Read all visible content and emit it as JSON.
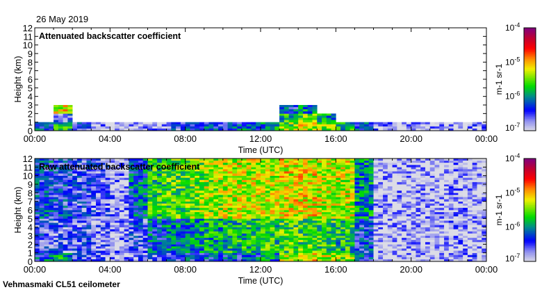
{
  "header": {
    "date": "26 May 2019",
    "station": "Vehmasmaki CL51 ceilometer"
  },
  "chart_data": [
    {
      "type": "heatmap",
      "title": "Attenuated backscatter coefficient",
      "xlabel": "Time (UTC)",
      "ylabel": "Height (km)",
      "xlim": [
        0,
        24
      ],
      "ylim": [
        0,
        12
      ],
      "x_tick_labels": [
        "00:00",
        "04:00",
        "08:00",
        "12:00",
        "16:00",
        "20:00",
        "00:00"
      ],
      "y_tick_labels": [
        "0",
        "1",
        "2",
        "3",
        "4",
        "5",
        "6",
        "7",
        "8",
        "9",
        "10",
        "11",
        "12"
      ],
      "x_hours": [
        0,
        1,
        2,
        3,
        4,
        5,
        6,
        7,
        8,
        9,
        10,
        11,
        12,
        13,
        14,
        15,
        16,
        17,
        18,
        19,
        20,
        21,
        22,
        23
      ],
      "value_units": "log10 backscatter (m-1 sr-1)",
      "rows_km_from_ground": [
        [
          -6.3,
          -5.8,
          -6.5,
          -6.8,
          -6.9,
          -6.9,
          -6.8,
          -6.5,
          -6.3,
          -6.3,
          -6.3,
          -6.2,
          -6.0,
          -5.5,
          -5.3,
          -5.5,
          -5.8,
          -6.2,
          -6.8,
          -6.9,
          -6.9,
          -6.9,
          -6.8,
          -6.7
        ],
        [
          null,
          -6.5,
          null,
          null,
          null,
          null,
          null,
          null,
          null,
          null,
          null,
          null,
          null,
          -5.8,
          -5.5,
          -6.0,
          null,
          null,
          null,
          null,
          null,
          null,
          null,
          null
        ],
        [
          null,
          -5.2,
          null,
          null,
          null,
          null,
          null,
          null,
          null,
          null,
          null,
          null,
          null,
          -6.3,
          -6.0,
          null,
          null,
          null,
          null,
          null,
          null,
          null,
          null,
          null
        ],
        [
          null,
          null,
          null,
          null,
          null,
          null,
          null,
          null,
          null,
          null,
          null,
          null,
          null,
          null,
          null,
          null,
          null,
          null,
          null,
          null,
          null,
          null,
          null,
          null
        ],
        [
          null,
          null,
          null,
          null,
          null,
          null,
          null,
          null,
          null,
          null,
          null,
          null,
          null,
          null,
          null,
          null,
          null,
          null,
          null,
          null,
          null,
          null,
          null,
          null
        ],
        [
          null,
          null,
          null,
          null,
          null,
          null,
          null,
          null,
          null,
          null,
          null,
          null,
          null,
          null,
          null,
          null,
          null,
          null,
          null,
          null,
          null,
          null,
          null,
          null
        ],
        [
          null,
          null,
          null,
          null,
          null,
          null,
          null,
          null,
          null,
          null,
          null,
          null,
          null,
          null,
          null,
          null,
          null,
          null,
          null,
          null,
          null,
          null,
          null,
          null
        ],
        [
          null,
          null,
          null,
          null,
          null,
          null,
          null,
          null,
          null,
          null,
          null,
          null,
          null,
          null,
          null,
          null,
          null,
          null,
          null,
          null,
          null,
          null,
          null,
          null
        ],
        [
          null,
          null,
          null,
          null,
          null,
          null,
          null,
          null,
          null,
          null,
          null,
          null,
          null,
          null,
          null,
          null,
          null,
          null,
          null,
          null,
          null,
          null,
          null,
          null
        ],
        [
          null,
          null,
          null,
          null,
          null,
          null,
          null,
          null,
          null,
          null,
          null,
          null,
          null,
          null,
          null,
          null,
          null,
          null,
          null,
          null,
          null,
          null,
          null,
          null
        ],
        [
          null,
          null,
          null,
          null,
          null,
          null,
          null,
          null,
          null,
          null,
          null,
          null,
          null,
          null,
          null,
          null,
          null,
          null,
          null,
          null,
          null,
          null,
          null,
          null
        ],
        [
          null,
          null,
          null,
          null,
          null,
          null,
          null,
          null,
          null,
          null,
          null,
          null,
          null,
          null,
          null,
          null,
          null,
          null,
          null,
          null,
          null,
          null,
          null,
          null
        ]
      ],
      "colorbar": {
        "label": "m-1 sr-1",
        "label_base": "m",
        "label_sup1": "-1",
        "label_mid": " sr",
        "label_sup2": "-1",
        "range_log10": [
          -7,
          -4
        ],
        "ticks": [
          {
            "base": "10",
            "exp": "-4"
          },
          {
            "base": "10",
            "exp": "-5"
          },
          {
            "base": "10",
            "exp": "-6"
          },
          {
            "base": "10",
            "exp": "-7"
          }
        ]
      }
    },
    {
      "type": "heatmap",
      "title": "Raw attenuated backscatter coefficient",
      "xlabel": "Time (UTC)",
      "ylabel": "Height (km)",
      "xlim": [
        0,
        24
      ],
      "ylim": [
        0,
        12
      ],
      "x_tick_labels": [
        "00:00",
        "04:00",
        "08:00",
        "12:00",
        "16:00",
        "20:00",
        "00:00"
      ],
      "y_tick_labels": [
        "0",
        "1",
        "2",
        "3",
        "4",
        "5",
        "6",
        "7",
        "8",
        "9",
        "10",
        "11",
        "12"
      ],
      "x_hours": [
        0,
        1,
        2,
        3,
        4,
        5,
        6,
        7,
        8,
        9,
        10,
        11,
        12,
        13,
        14,
        15,
        16,
        17,
        18,
        19,
        20,
        21,
        22,
        23
      ],
      "value_units": "log10 backscatter (m-1 sr-1)",
      "rows_km_from_ground": [
        [
          -6.2,
          -5.9,
          -6.5,
          -6.7,
          -6.8,
          -6.7,
          -6.6,
          -6.5,
          -6.3,
          -6.3,
          -6.3,
          -6.2,
          -6.0,
          -5.3,
          -5.2,
          -5.3,
          -5.4,
          -6.2,
          -6.9,
          -6.9,
          -6.9,
          -6.9,
          -6.8,
          -6.7
        ],
        [
          -6.5,
          -6.6,
          -6.6,
          -6.7,
          -6.8,
          -6.5,
          -6.2,
          -6.1,
          -6.0,
          -5.9,
          -5.8,
          -5.8,
          -5.7,
          -5.6,
          -5.6,
          -5.7,
          -5.8,
          -6.3,
          -6.9,
          -6.9,
          -6.9,
          -6.9,
          -6.8,
          -6.9
        ],
        [
          -6.5,
          -6.6,
          -6.6,
          -6.7,
          -6.8,
          -6.5,
          -6.2,
          -6.1,
          -6.0,
          -5.9,
          -5.8,
          -5.8,
          -5.7,
          -5.6,
          -5.6,
          -5.7,
          -5.8,
          -6.3,
          -6.9,
          -6.9,
          -6.9,
          -6.9,
          -6.8,
          -6.9
        ],
        [
          -6.5,
          -6.6,
          -6.6,
          -6.7,
          -6.8,
          -6.5,
          -6.2,
          -6.1,
          -6.0,
          -5.9,
          -5.8,
          -5.8,
          -5.7,
          -5.6,
          -5.6,
          -5.7,
          -5.8,
          -6.3,
          -6.9,
          -6.9,
          -6.9,
          -6.9,
          -6.8,
          -6.9
        ],
        [
          -6.5,
          -6.6,
          -6.6,
          -6.7,
          -6.8,
          -6.5,
          -6.2,
          -6.1,
          -6.0,
          -5.9,
          -5.8,
          -5.8,
          -5.7,
          -5.6,
          -5.6,
          -5.7,
          -5.8,
          -6.3,
          -6.9,
          -6.9,
          -6.9,
          -6.9,
          -6.8,
          -6.9
        ],
        [
          -6.3,
          -6.4,
          -6.5,
          -6.6,
          -6.8,
          -6.2,
          -5.7,
          -5.6,
          -5.5,
          -5.4,
          -5.3,
          -5.3,
          -5.3,
          -5.2,
          -5.2,
          -5.3,
          -5.3,
          -6.0,
          -6.9,
          -6.9,
          -6.9,
          -6.9,
          -6.8,
          -6.9
        ],
        [
          -6.3,
          -6.4,
          -6.5,
          -6.6,
          -6.8,
          -6.2,
          -5.7,
          -5.6,
          -5.5,
          -5.4,
          -5.3,
          -5.3,
          -5.3,
          -5.2,
          -5.2,
          -5.3,
          -5.3,
          -6.0,
          -6.9,
          -6.9,
          -6.9,
          -6.9,
          -6.8,
          -6.9
        ],
        [
          -6.3,
          -6.4,
          -6.5,
          -6.6,
          -6.8,
          -6.2,
          -5.7,
          -5.6,
          -5.5,
          -5.4,
          -5.3,
          -5.3,
          -5.3,
          -5.2,
          -5.2,
          -5.3,
          -5.3,
          -6.0,
          -6.9,
          -6.9,
          -6.9,
          -6.9,
          -6.8,
          -6.9
        ],
        [
          -6.3,
          -6.4,
          -6.5,
          -6.6,
          -6.8,
          -6.2,
          -5.7,
          -5.6,
          -5.5,
          -5.4,
          -5.3,
          -5.3,
          -5.3,
          -5.2,
          -5.2,
          -5.3,
          -5.3,
          -6.0,
          -6.9,
          -6.9,
          -6.9,
          -6.9,
          -6.8,
          -6.9
        ],
        [
          -6.3,
          -6.4,
          -6.5,
          -6.6,
          -6.8,
          -6.2,
          -5.7,
          -5.6,
          -5.5,
          -5.4,
          -5.3,
          -5.3,
          -5.3,
          -5.2,
          -5.2,
          -5.3,
          -5.3,
          -6.0,
          -6.9,
          -6.9,
          -6.9,
          -6.9,
          -6.8,
          -6.9
        ],
        [
          -6.3,
          -6.4,
          -6.5,
          -6.6,
          -6.8,
          -6.2,
          -5.7,
          -5.6,
          -5.5,
          -5.4,
          -5.3,
          -5.3,
          -5.3,
          -5.2,
          -5.2,
          -5.3,
          -5.3,
          -6.0,
          -6.9,
          -6.9,
          -6.9,
          -6.9,
          -6.8,
          -6.9
        ],
        [
          -6.3,
          -6.4,
          -6.5,
          -6.6,
          -6.8,
          -6.2,
          -5.7,
          -5.6,
          -5.5,
          -5.4,
          -5.3,
          -5.3,
          -5.3,
          -5.2,
          -5.2,
          -5.3,
          -5.3,
          -6.0,
          -6.9,
          -6.9,
          -6.9,
          -6.9,
          -6.8,
          -6.9
        ]
      ],
      "colorbar": {
        "label": "m-1 sr-1",
        "label_base": "m",
        "label_sup1": "-1",
        "label_mid": " sr",
        "label_sup2": "-1",
        "range_log10": [
          -7,
          -4
        ],
        "ticks": [
          {
            "base": "10",
            "exp": "-4"
          },
          {
            "base": "10",
            "exp": "-5"
          },
          {
            "base": "10",
            "exp": "-6"
          },
          {
            "base": "10",
            "exp": "-7"
          }
        ]
      }
    }
  ],
  "colors": {
    "colormap": [
      "#dcdce6",
      "#8c8cf0",
      "#0000ff",
      "#008c8c",
      "#00dc00",
      "#f0f000",
      "#ff8c00",
      "#ff0000",
      "#c00030",
      "#800080"
    ]
  }
}
